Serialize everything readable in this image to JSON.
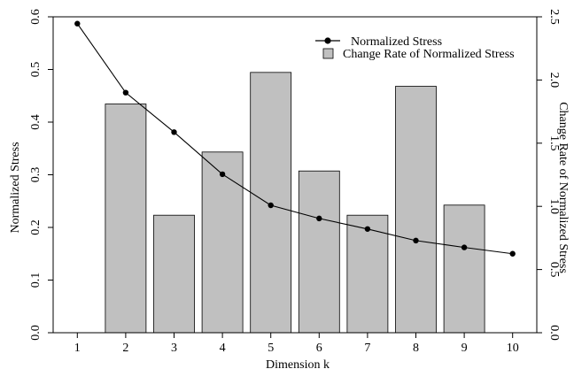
{
  "chart_data": {
    "type": "bar",
    "title": "",
    "xlabel": "Dimension k",
    "ylabel": "Normalized Stress",
    "y2label": "Change Rate of Normalized Stress",
    "x": [
      1,
      2,
      3,
      4,
      5,
      6,
      7,
      8,
      9,
      10
    ],
    "xticks": [
      "1",
      "2",
      "3",
      "4",
      "5",
      "6",
      "7",
      "8",
      "9",
      "10"
    ],
    "ylim": [
      0,
      0.6
    ],
    "yticks": [
      "0.0",
      "0.1",
      "0.2",
      "0.3",
      "0.4",
      "0.5",
      "0.6"
    ],
    "y2lim": [
      0,
      2.5
    ],
    "y2ticks": [
      "0.0",
      "0.5",
      "1.0",
      "1.5",
      "2.0",
      "2.5"
    ],
    "grid": false,
    "legend_position": "top-right",
    "series": [
      {
        "name": "Normalized Stress",
        "kind": "line",
        "axis": "left",
        "color": "#000000",
        "values": [
          0.587,
          0.456,
          0.381,
          0.301,
          0.242,
          0.217,
          0.197,
          0.175,
          0.162,
          0.15
        ]
      },
      {
        "name": "Change Rate of Normalized Stress",
        "kind": "bar",
        "axis": "right",
        "color": "#c0c0c0",
        "values": [
          null,
          1.81,
          0.93,
          1.43,
          2.06,
          1.28,
          0.93,
          1.95,
          1.01,
          null
        ]
      }
    ]
  }
}
